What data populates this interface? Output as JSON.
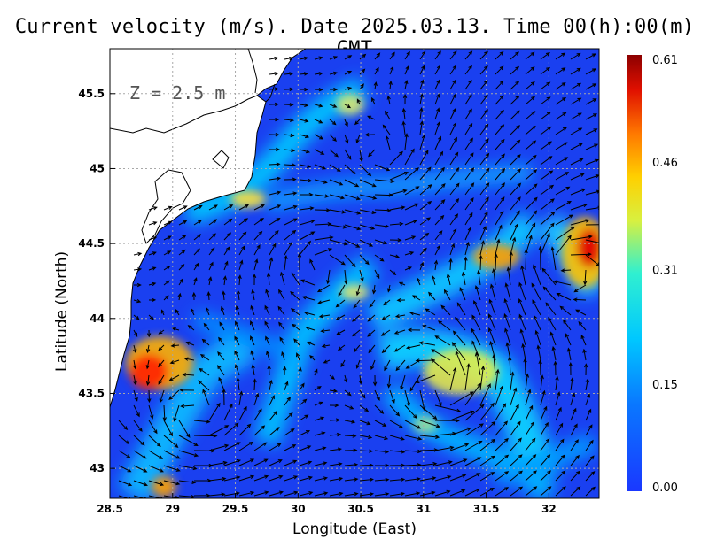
{
  "title": "Current velocity (m/s). Date 2025.03.13. Time 00(h):00(m) GMT",
  "depth_label": "Z = 2.5 m",
  "axes": {
    "xlabel": "Longitude (East)",
    "ylabel": "Latitude (North)",
    "xlim": [
      28.5,
      32.4
    ],
    "ylim": [
      42.8,
      45.8
    ],
    "xticks": [
      "28.5",
      "29",
      "29.5",
      "30",
      "30.5",
      "31",
      "31.5",
      "32"
    ],
    "yticks": [
      "45.5",
      "45",
      "44.5",
      "44",
      "43.5",
      "43"
    ],
    "grid": true
  },
  "colorbar": {
    "min": 0.0,
    "max": 0.61,
    "labels": [
      "0.61",
      "0.46",
      "0.31",
      "0.15",
      "0.00"
    ],
    "colormap": [
      "#0000ff",
      "#00bfff",
      "#00ffff",
      "#ffff00",
      "#ff8000",
      "#ff0000",
      "#8b0000"
    ]
  },
  "colors": {
    "land": "#ffffff",
    "coast": "#000000",
    "water_base": "#1a40f0"
  }
}
